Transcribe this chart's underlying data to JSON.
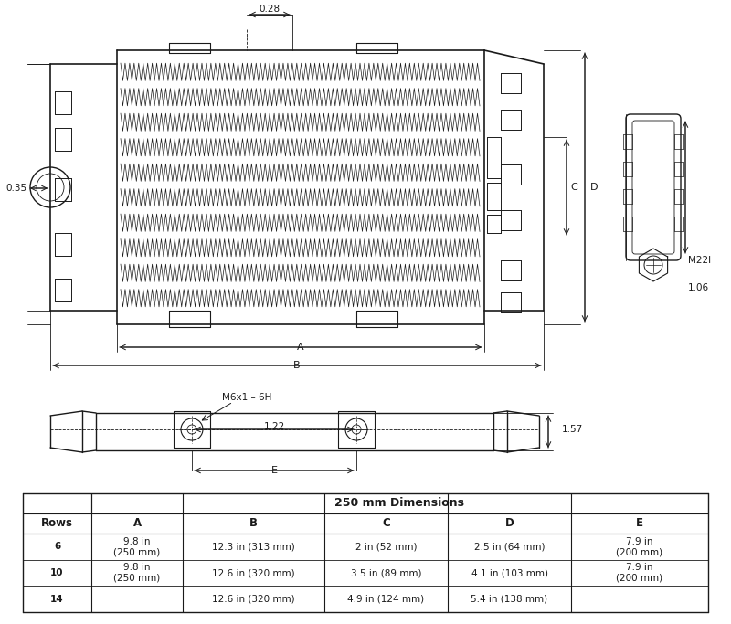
{
  "bg_color": "#ffffff",
  "line_color": "#1a1a1a",
  "title": "250 mm Dimensions",
  "table_header": [
    "Rows",
    "A",
    "B",
    "C",
    "D",
    "E"
  ],
  "table_rows": [
    [
      "6",
      "9.8 in\n(250 mm)",
      "12.3 in (313 mm)",
      "2 in (52 mm)",
      "2.5 in (64 mm)",
      "7.9 in\n(200 mm)"
    ],
    [
      "10",
      "",
      "12.6 in (320 mm)",
      "3.5 in (89 mm)",
      "4.1 in (103 mm)",
      ""
    ],
    [
      "14",
      "",
      "12.6 in (320 mm)",
      "4.9 in (124 mm)",
      "5.4 in (138 mm)",
      ""
    ]
  ],
  "dim_028": "0.28",
  "dim_035": "0.35",
  "dim_A": "A",
  "dim_B": "B",
  "dim_C": "C",
  "dim_D": "D",
  "dim_E": "E",
  "dim_M22I": "M22l",
  "dim_106": "1.06",
  "dim_M6x1": "M6x1 – 6H",
  "dim_122": "1.22",
  "dim_157": "1.57"
}
